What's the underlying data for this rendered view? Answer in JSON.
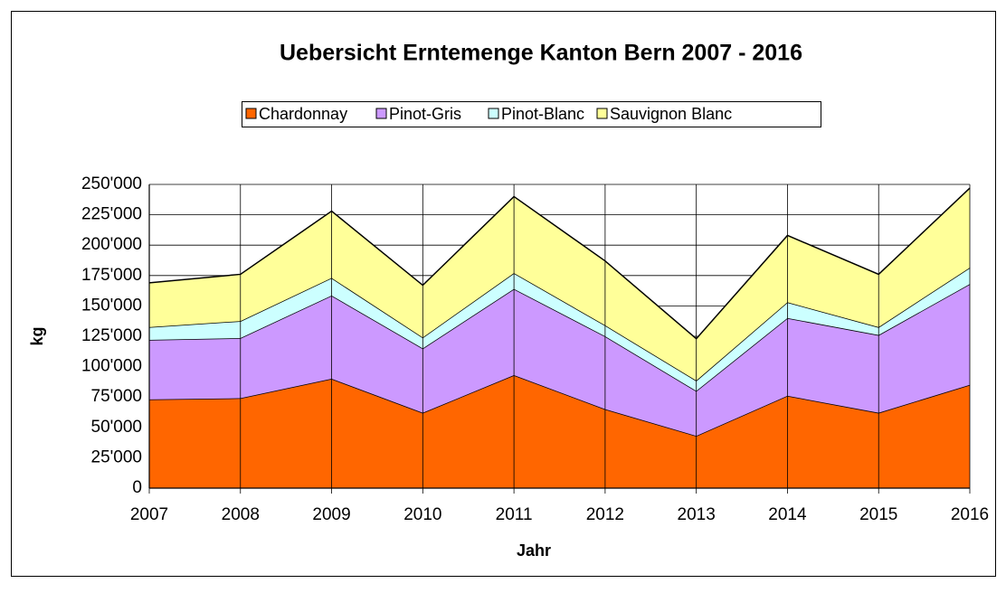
{
  "chart_data": {
    "type": "stacked-area",
    "title": "Uebersicht Erntemenge Kanton Bern 2007 - 2016",
    "x_label": "Jahr",
    "y_label": "kg",
    "categories": [
      "2007",
      "2008",
      "2009",
      "2010",
      "2011",
      "2012",
      "2013",
      "2014",
      "2015",
      "2016"
    ],
    "series": [
      {
        "name": "Chardonnay",
        "color": "#ff6600",
        "values": [
          73000,
          74000,
          90000,
          62000,
          93000,
          65000,
          43000,
          76000,
          62000,
          85000
        ]
      },
      {
        "name": "Pinot-Gris",
        "color": "#cc99ff",
        "values": [
          49000,
          49500,
          68500,
          53000,
          71000,
          60000,
          37000,
          64000,
          64000,
          83000
        ]
      },
      {
        "name": "Pinot-Blanc",
        "color": "#ccffff",
        "values": [
          10500,
          14000,
          14500,
          9000,
          13000,
          9000,
          8500,
          13000,
          6500,
          13500
        ]
      },
      {
        "name": "Sauvignon Blanc",
        "color": "#ffff99",
        "values": [
          36500,
          38500,
          55000,
          43000,
          63000,
          53000,
          34500,
          55000,
          43500,
          65500
        ]
      }
    ],
    "ylim": [
      0,
      250000
    ],
    "yticks": [
      0,
      {
        "value": 25000,
        "label": "25'000"
      },
      {
        "value": 50000,
        "label": "50'000"
      },
      {
        "value": 75000,
        "label": "75'000"
      },
      {
        "value": 100000,
        "label": "100'000"
      },
      {
        "value": 125000,
        "label": "125'000"
      },
      {
        "value": 150000,
        "label": "150'000"
      },
      {
        "value": 175000,
        "label": "175'000"
      },
      {
        "value": 200000,
        "label": "200'000"
      },
      {
        "value": 225000,
        "label": "225'000"
      },
      {
        "value": 250000,
        "label": "250'000"
      }
    ],
    "grid": true
  }
}
